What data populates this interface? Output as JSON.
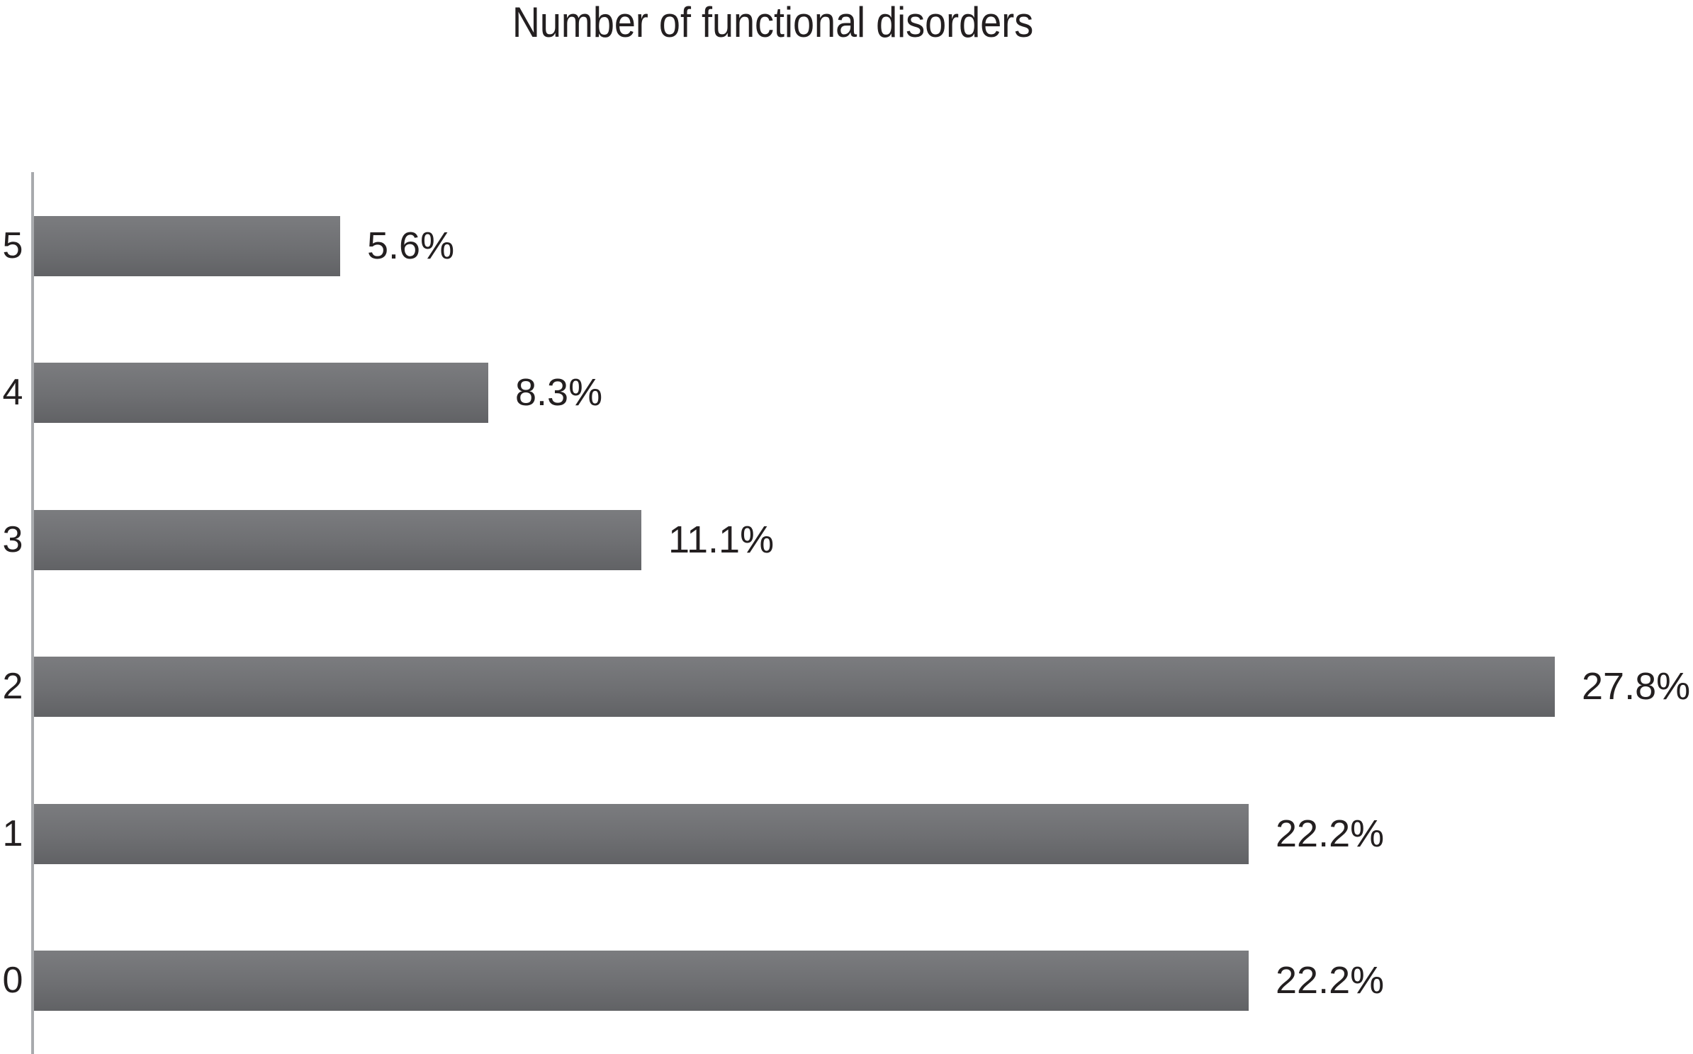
{
  "chart_data": {
    "type": "bar",
    "orientation": "horizontal",
    "title": "Number of functional disorders",
    "categories": [
      "5",
      "4",
      "3",
      "2",
      "1",
      "0"
    ],
    "values": [
      5.6,
      8.3,
      11.1,
      27.8,
      22.2,
      22.2
    ],
    "value_labels": [
      "5.6%",
      "8.3%",
      "11.1%",
      "27.8%",
      "22.2%",
      "22.2%"
    ],
    "xlabel": "",
    "ylabel": "",
    "xlim": [
      0,
      30.3
    ],
    "grid": false,
    "legend": "none",
    "bar_color_top": "#7b7c7f",
    "bar_color_mid": "#6e6f72",
    "bar_color_bottom": "#616265",
    "axis_line_color": "#a8aaad",
    "text_color": "#231f20",
    "background": "#ffffff"
  }
}
